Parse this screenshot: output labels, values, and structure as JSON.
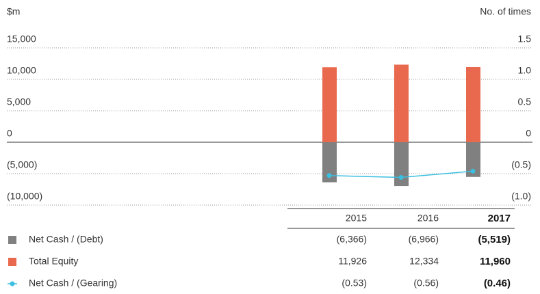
{
  "chart_data": {
    "type": "bar",
    "y_label": "$m",
    "y2_label": "No. of times",
    "categories": [
      "2015",
      "2016",
      "2017"
    ],
    "series": [
      {
        "name": "Net Cash / (Debt)",
        "color": "#808080",
        "values": [
          -6366,
          -6966,
          -5519
        ],
        "value_labels": [
          "(6,366)",
          "(6,966)",
          "(5,519)"
        ]
      },
      {
        "name": "Total Equity",
        "color": "#e8694d",
        "values": [
          11926,
          12334,
          11960
        ],
        "value_labels": [
          "11,926",
          "12,334",
          "11,960"
        ]
      },
      {
        "name": "Net Cash / (Gearing)",
        "color": "#3bbfe0",
        "type": "line",
        "axis": "y2",
        "values": [
          -0.53,
          -0.56,
          -0.46
        ],
        "value_labels": [
          "(0.53)",
          "(0.56)",
          "(0.46)"
        ]
      }
    ],
    "ylim": [
      -10000,
      15000
    ],
    "yticks": [
      {
        "value": 15000,
        "label": "15,000"
      },
      {
        "value": 10000,
        "label": "10,000"
      },
      {
        "value": 5000,
        "label": "5,000"
      },
      0,
      {
        "value": -5000,
        "label": "(5,000)"
      },
      {
        "value": -10000,
        "label": "(10,000)"
      }
    ],
    "y2lim": [
      -1,
      1.5
    ],
    "y2ticks": [
      1.5,
      {
        "value": 1,
        "label": "1.0"
      },
      0.5,
      0,
      {
        "value": -0.5,
        "label": "(0.5)"
      },
      {
        "value": -1,
        "label": "(1.0)"
      }
    ],
    "grid": true
  }
}
